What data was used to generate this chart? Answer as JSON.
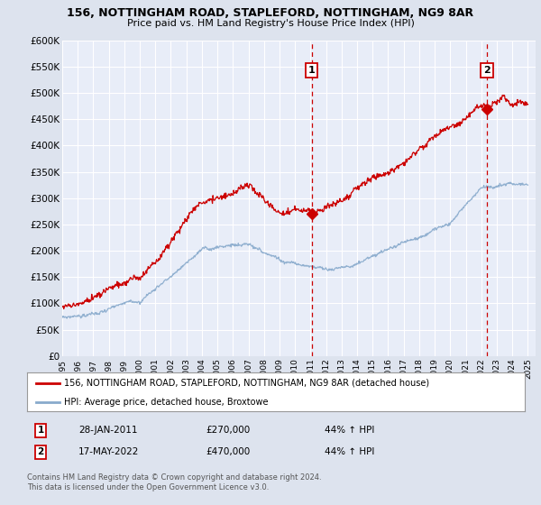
{
  "title1": "156, NOTTINGHAM ROAD, STAPLEFORD, NOTTINGHAM, NG9 8AR",
  "title2": "Price paid vs. HM Land Registry's House Price Index (HPI)",
  "ylim": [
    0,
    600000
  ],
  "yticks": [
    0,
    50000,
    100000,
    150000,
    200000,
    250000,
    300000,
    350000,
    400000,
    450000,
    500000,
    550000,
    600000
  ],
  "xlim_start": 1995.0,
  "xlim_end": 2025.5,
  "bg_color": "#dde3ee",
  "plot_bg_color": "#e8edf8",
  "grid_color": "#ffffff",
  "sale1_date": 2011.07,
  "sale1_price": 270000,
  "sale2_date": 2022.37,
  "sale2_price": 470000,
  "legend_line1": "156, NOTTINGHAM ROAD, STAPLEFORD, NOTTINGHAM, NG9 8AR (detached house)",
  "legend_line2": "HPI: Average price, detached house, Broxtowe",
  "annotation1_date": "28-JAN-2011",
  "annotation1_price": "£270,000",
  "annotation1_hpi": "44% ↑ HPI",
  "annotation2_date": "17-MAY-2022",
  "annotation2_price": "£470,000",
  "annotation2_hpi": "44% ↑ HPI",
  "footer": "Contains HM Land Registry data © Crown copyright and database right 2024.\nThis data is licensed under the Open Government Licence v3.0.",
  "red_color": "#cc0000",
  "blue_color": "#88aacc"
}
